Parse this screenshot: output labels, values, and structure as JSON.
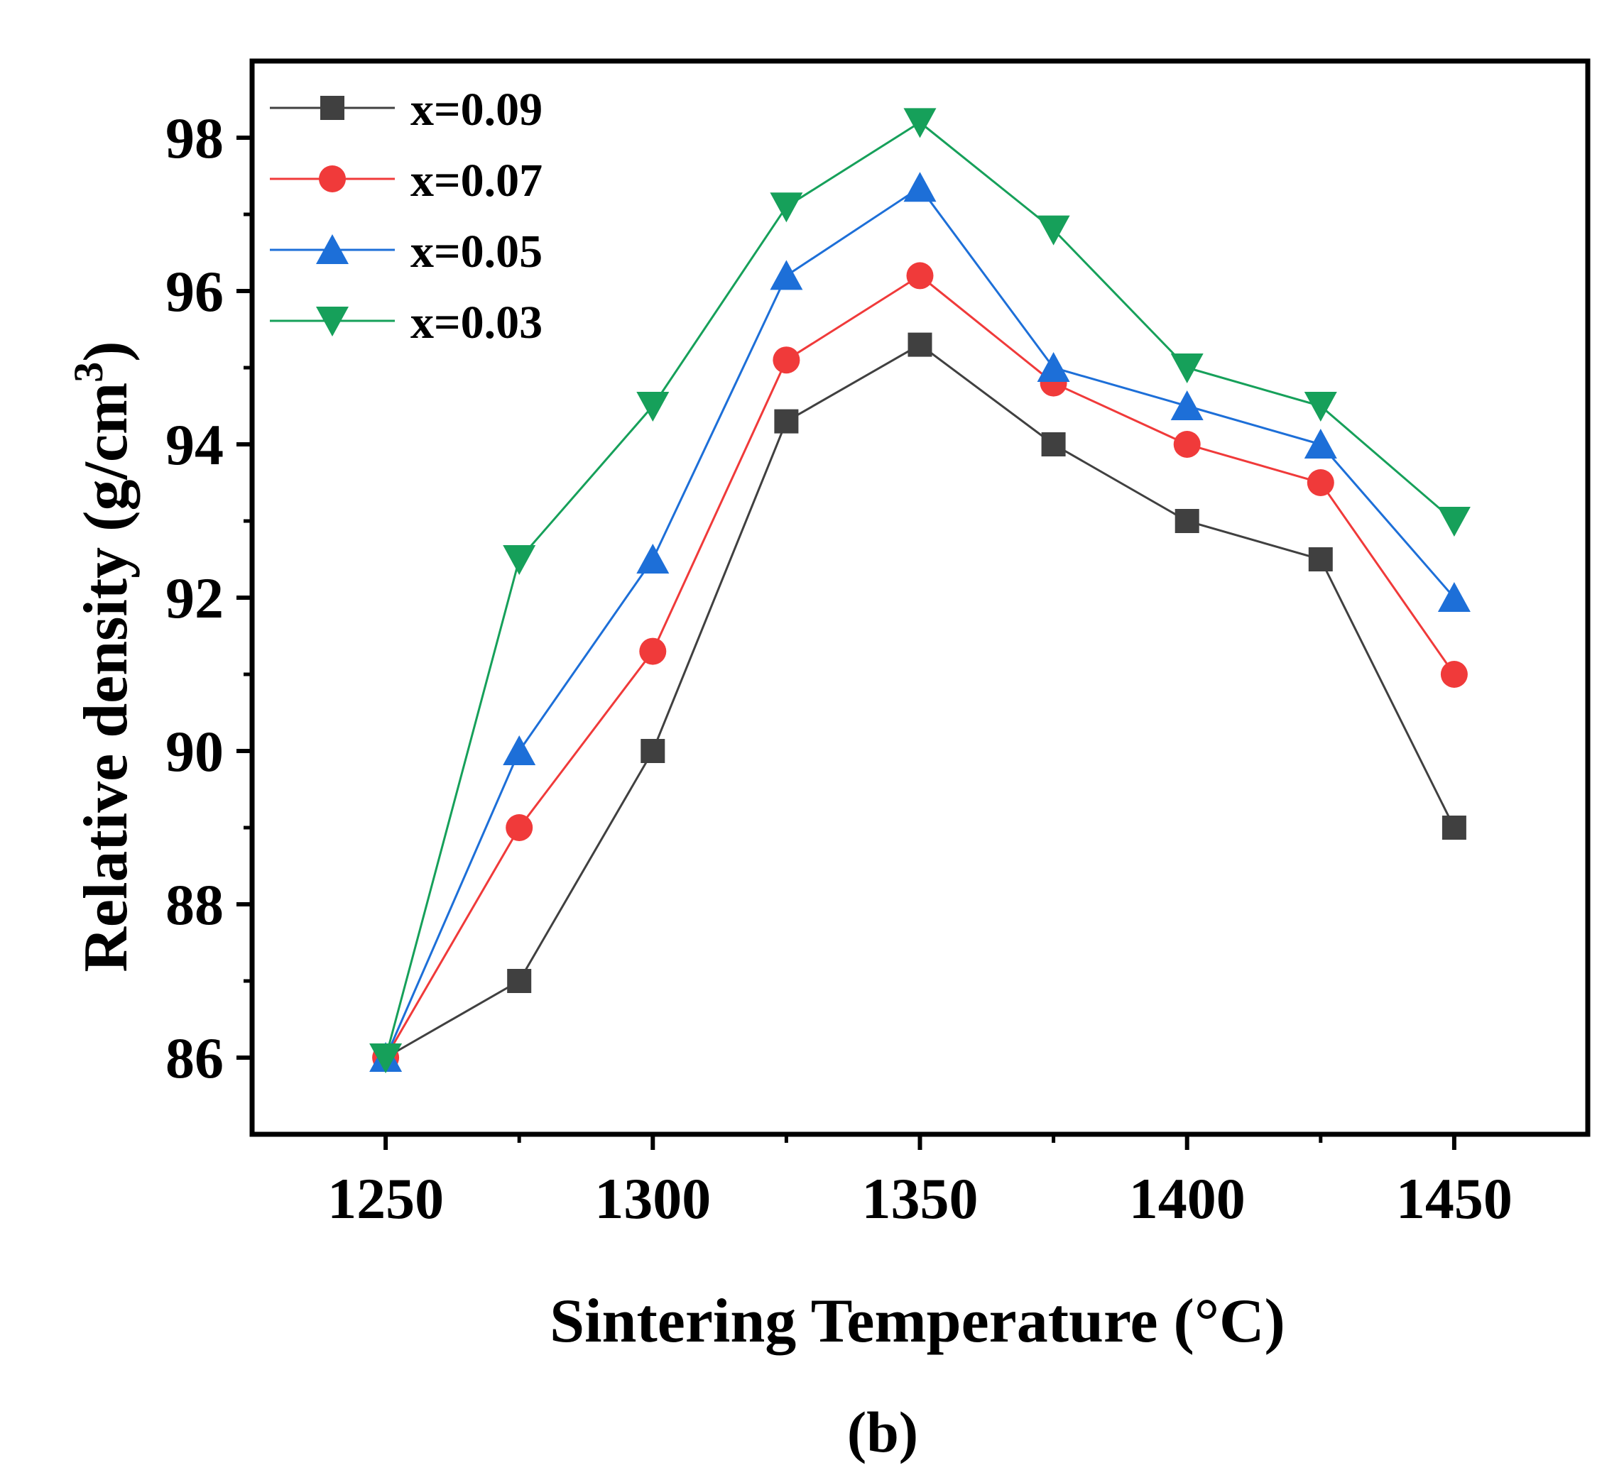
{
  "chart_data": {
    "type": "line",
    "title": "",
    "xlabel": "Sintering Temperature (°C)",
    "ylabel_main": "Relative density (g/cm",
    "ylabel_sup": "3",
    "ylabel_close": ")",
    "caption": "(b)",
    "xlim": [
      1225,
      1475
    ],
    "ylim": [
      85,
      99
    ],
    "xticks": [
      1250,
      1300,
      1350,
      1400,
      1450
    ],
    "xtick_labels": [
      "1250",
      "1300",
      "1350",
      "1400",
      "1450"
    ],
    "xminor": [
      1275,
      1325,
      1375,
      1425
    ],
    "yticks": [
      86,
      88,
      90,
      92,
      94,
      96,
      98
    ],
    "ytick_labels": [
      "86",
      "88",
      "90",
      "92",
      "94",
      "96",
      "98"
    ],
    "yminor": [
      87,
      89,
      91,
      93,
      95,
      97
    ],
    "grid": false,
    "legend_position": "top-left",
    "x": [
      1250,
      1275,
      1300,
      1325,
      1350,
      1375,
      1400,
      1425,
      1450
    ],
    "series": [
      {
        "name": "x=0.09",
        "marker": "square",
        "color": "#404040",
        "values": [
          86.0,
          87.0,
          90.0,
          94.3,
          95.3,
          94.0,
          93.0,
          92.5,
          89.0
        ]
      },
      {
        "name": "x=0.07",
        "marker": "circle",
        "color": "#f03a3a",
        "values": [
          86.0,
          89.0,
          91.3,
          95.1,
          96.2,
          94.8,
          94.0,
          93.5,
          91.0
        ]
      },
      {
        "name": "x=0.05",
        "marker": "triangle-up",
        "color": "#1d6fd8",
        "values": [
          86.0,
          90.0,
          92.5,
          96.2,
          97.35,
          95.0,
          94.5,
          94.0,
          92.0
        ]
      },
      {
        "name": "x=0.03",
        "marker": "triangle-down",
        "color": "#16a05a",
        "values": [
          86.0,
          92.5,
          94.5,
          97.1,
          98.2,
          96.8,
          95.0,
          94.5,
          93.0
        ]
      }
    ]
  }
}
